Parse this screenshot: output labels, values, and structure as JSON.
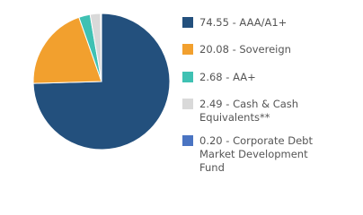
{
  "chart_data": {
    "type": "pie",
    "categories": [
      "74.55 - AAA/A1+",
      "20.08 - Sovereign",
      "2.68 - AA+",
      "2.49 - Cash & Cash Equivalents**",
      "0.20 - Corporate Debt Market Development Fund"
    ],
    "values": [
      74.55,
      20.08,
      2.68,
      2.49,
      0.2
    ],
    "colors": [
      "#23507d",
      "#f2a02e",
      "#3fc1b3",
      "#d9d9d9",
      "#4a74c2"
    ]
  }
}
